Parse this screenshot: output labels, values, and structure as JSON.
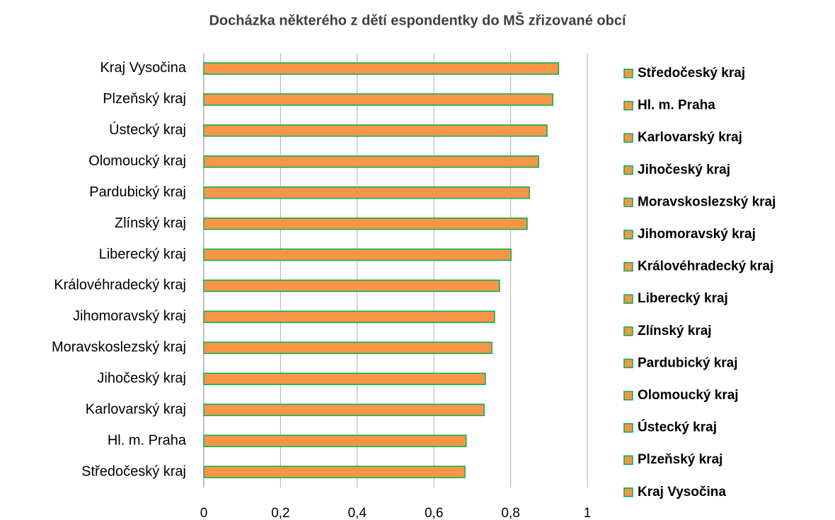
{
  "chart_data": {
    "type": "bar",
    "orientation": "horizontal",
    "title": "Docházka některého z dětí espondentky do MŠ zřizované obcí",
    "categories": [
      "Středočeský kraj",
      "Hl. m. Praha",
      "Karlovarský kraj",
      "Jihočeský kraj",
      "Moravskoslezský kraj",
      "Jihomoravský kraj",
      "Královéhradecký kraj",
      "Liberecký kraj",
      "Zlínský kraj",
      "Pardubický kraj",
      "Olomoucký kraj",
      "Ústecký kraj",
      "Plzeňský kraj",
      "Kraj Vysočina"
    ],
    "values": [
      0.681,
      0.684,
      0.731,
      0.734,
      0.751,
      0.758,
      0.771,
      0.801,
      0.843,
      0.849,
      0.873,
      0.895,
      0.91,
      0.925
    ],
    "color": "#f79646",
    "edge_color": "#00b050",
    "xlim": [
      0,
      1
    ],
    "xticks": [
      0,
      {
        "value": 0.2,
        "label": "0,2"
      },
      {
        "value": 0.4,
        "label": "0,4"
      },
      {
        "value": 0.6,
        "label": "0,6"
      },
      {
        "value": 0.8,
        "label": "0,8"
      },
      1
    ],
    "grid": true,
    "legend": "right"
  }
}
